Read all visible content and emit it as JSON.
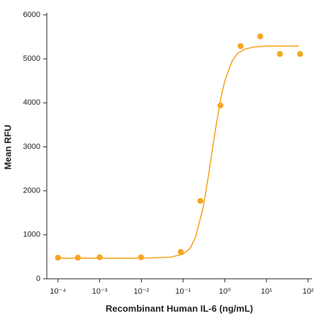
{
  "chart_data": {
    "type": "scatter",
    "xlabel": "Recombinant Human IL-6 (ng/mL)",
    "ylabel": "Mean RFU",
    "xlog": true,
    "xlim": [
      5.4e-05,
      123
    ],
    "ylim": [
      0,
      6000
    ],
    "xticks": [
      {
        "value": 0.0001,
        "label": "10⁻⁴"
      },
      {
        "value": 0.001,
        "label": "10⁻³"
      },
      {
        "value": 0.01,
        "label": "10⁻²"
      },
      {
        "value": 0.1,
        "label": "10⁻¹"
      },
      {
        "value": 1,
        "label": "10⁰"
      },
      {
        "value": 10,
        "label": "10¹"
      },
      {
        "value": 100,
        "label": "10²"
      }
    ],
    "yticks": [
      0,
      1000,
      2000,
      3000,
      4000,
      5000,
      6000
    ],
    "series": [
      {
        "kind": "points",
        "color": "#f5a623",
        "x": [
          0.0001,
          0.0003,
          0.001,
          0.0098,
          0.088,
          0.26,
          0.79,
          2.4,
          7.1,
          21,
          64
        ],
        "values": [
          480,
          480,
          490,
          490,
          610,
          1770,
          3940,
          5290,
          5510,
          5110,
          5110
        ]
      },
      {
        "kind": "curve",
        "color": "#f5a623",
        "x": [
          0.0001,
          0.01,
          0.05,
          0.1,
          0.15,
          0.2,
          0.3,
          0.4,
          0.5,
          0.6,
          0.8,
          1,
          1.5,
          2,
          3,
          5,
          10,
          60
        ],
        "values": [
          470,
          470,
          490,
          560,
          700,
          950,
          1600,
          2300,
          2900,
          3400,
          4100,
          4500,
          4950,
          5120,
          5220,
          5270,
          5290,
          5290
        ]
      }
    ]
  }
}
